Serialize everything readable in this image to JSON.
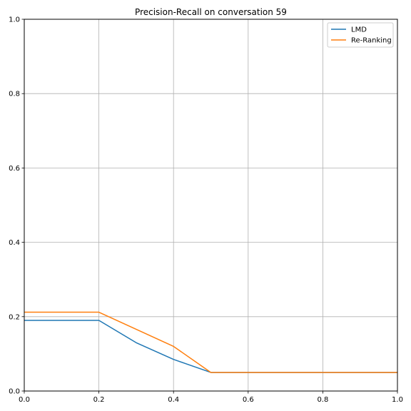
{
  "chart_data": {
    "type": "line",
    "title": "Precision-Recall on conversation 59",
    "xlabel": "",
    "ylabel": "",
    "xlim": [
      0,
      1
    ],
    "ylim": [
      0,
      1
    ],
    "x_ticks": [
      "0.0",
      "0.2",
      "0.4",
      "0.6",
      "0.8",
      "1.0"
    ],
    "y_ticks": [
      "0.0",
      "0.2",
      "0.4",
      "0.6",
      "0.8",
      "1.0"
    ],
    "grid": true,
    "legend_position": "top-right",
    "series": [
      {
        "name": "LMD",
        "color": "#1f77b4",
        "x": [
          0.0,
          0.2,
          0.3,
          0.4,
          0.5,
          1.0
        ],
        "y": [
          0.19,
          0.19,
          0.13,
          0.085,
          0.05,
          0.05
        ]
      },
      {
        "name": "Re-Ranking",
        "color": "#ff7f0e",
        "x": [
          0.0,
          0.2,
          0.4,
          0.5,
          1.0
        ],
        "y": [
          0.212,
          0.212,
          0.12,
          0.05,
          0.05
        ]
      }
    ]
  }
}
